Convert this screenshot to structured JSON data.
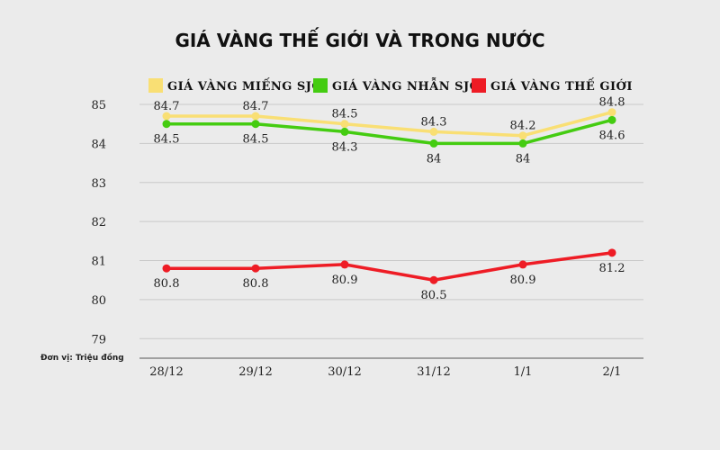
{
  "chart_data": {
    "type": "line",
    "title": "GIÁ VÀNG THẾ GIỚI VÀ TRONG NƯỚC",
    "unit_note": "Đơn vị: Triệu đồng",
    "categories": [
      "28/12",
      "29/12",
      "30/12",
      "31/12",
      "1/1",
      "2/1"
    ],
    "y_ticks": [
      "85",
      "84",
      "83",
      "82",
      "81",
      "80",
      "79"
    ],
    "ylim": [
      78.5,
      85.3
    ],
    "grid": true,
    "legend_position": "top",
    "series": [
      {
        "name": "GIÁ VÀNG MIẾNG SJC",
        "color": "#f9df74",
        "values": [
          84.7,
          84.7,
          84.5,
          84.3,
          84.2,
          84.8
        ],
        "labels": [
          "84.7",
          "84.7",
          "84.5",
          "84.3",
          "84.2",
          "84.8"
        ],
        "label_position": "above"
      },
      {
        "name": "GIÁ VÀNG NHẪN SJC",
        "color": "#44cc11",
        "values": [
          84.5,
          84.5,
          84.3,
          84.0,
          84.0,
          84.6
        ],
        "labels": [
          "84.5",
          "84.5",
          "84.3",
          "84",
          "84",
          "84.6"
        ],
        "label_position": "below"
      },
      {
        "name": "GIÁ VÀNG THẾ GIỚI",
        "color": "#ee1c25",
        "values": [
          80.8,
          80.8,
          80.9,
          80.5,
          80.9,
          81.2
        ],
        "labels": [
          "80.8",
          "80.8",
          "80.9",
          "80.5",
          "80.9",
          "81.2"
        ],
        "label_position": "below"
      }
    ]
  }
}
